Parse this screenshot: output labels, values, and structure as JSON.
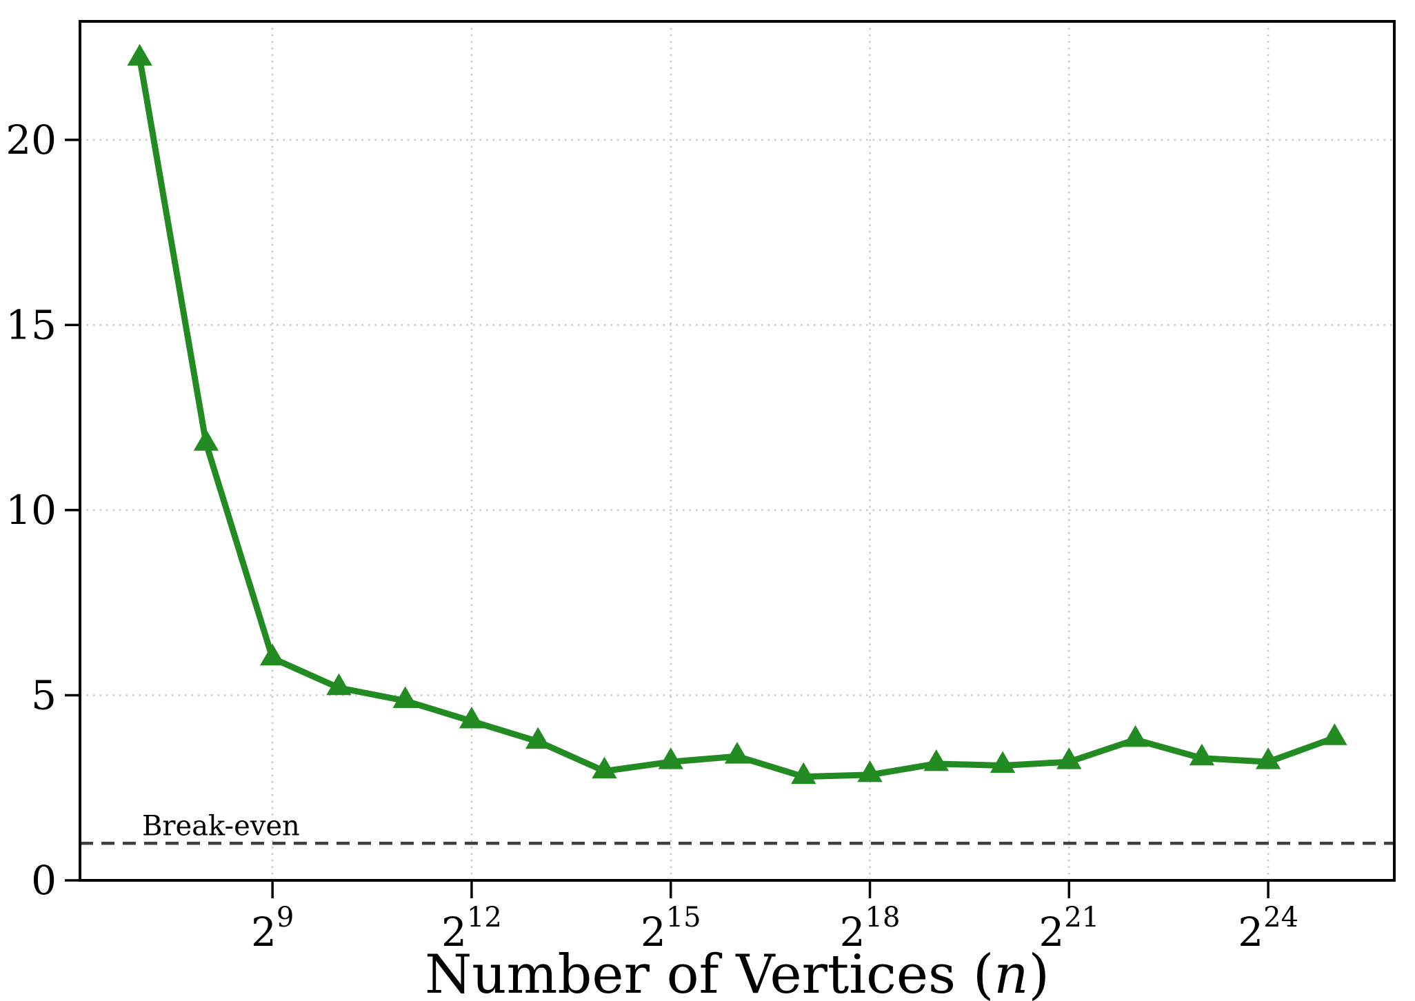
{
  "chart_data": {
    "type": "line",
    "x_base": "2",
    "x_exponents": [
      7,
      8,
      9,
      10,
      11,
      12,
      13,
      14,
      15,
      16,
      17,
      18,
      19,
      20,
      21,
      22,
      23,
      24,
      25
    ],
    "values": [
      22.2,
      11.8,
      6.0,
      5.2,
      4.85,
      4.3,
      3.75,
      2.95,
      3.2,
      3.35,
      2.8,
      2.85,
      3.15,
      3.1,
      3.2,
      3.8,
      3.3,
      3.2,
      3.85
    ],
    "x_tick_exponents": [
      9,
      12,
      15,
      18,
      21,
      24
    ],
    "y_ticks": [
      0,
      5,
      10,
      15,
      20
    ],
    "xlim_powers": [
      6.1,
      25.9
    ],
    "ylim": [
      0,
      23.2
    ],
    "xlabel_prefix": "Number of Vertices (",
    "xlabel_var": "n",
    "xlabel_suffix": ")",
    "break_even": {
      "value": 1,
      "label": "Break-even"
    },
    "grid": "dotted",
    "legend": "none",
    "colors": {
      "line": "#228B22",
      "marker": "#228B22",
      "break_even_line": "#404040",
      "break_even_text": "#595959",
      "grid": "#c9c9c9",
      "axis": "#000000",
      "background": "#ffffff"
    }
  }
}
